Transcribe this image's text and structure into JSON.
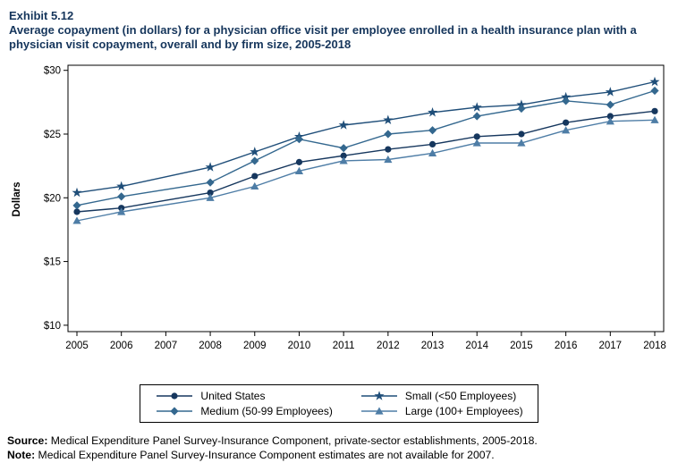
{
  "header": {
    "exhibit": "Exhibit 5.12",
    "title": "Average copayment (in dollars) for a physician office visit per employee enrolled in a health insurance plan with a physician visit copayment, overall and by firm size, 2005-2018"
  },
  "chart_data": {
    "type": "line",
    "x": [
      2005,
      2006,
      2007,
      2008,
      2009,
      2010,
      2011,
      2012,
      2013,
      2014,
      2015,
      2016,
      2017,
      2018
    ],
    "xlabel": "",
    "ylabel": "Dollars",
    "ylim": [
      10,
      30
    ],
    "yticks": [
      10,
      15,
      20,
      25,
      30
    ],
    "ytick_labels": [
      "$10",
      "$15",
      "$20",
      "$25",
      "$30"
    ],
    "grid": false,
    "legend_position": "bottom",
    "missing_year_note": "2007 estimates not available",
    "series": [
      {
        "name": "United States",
        "marker": "circle",
        "color": "#16375e",
        "values": [
          18.9,
          19.2,
          null,
          20.4,
          21.7,
          22.8,
          23.3,
          23.8,
          24.2,
          24.8,
          25.0,
          25.9,
          26.4,
          26.8
        ]
      },
      {
        "name": "Small (<50 Employees)",
        "marker": "star",
        "color": "#1f4e79",
        "values": [
          20.4,
          20.9,
          null,
          22.4,
          23.6,
          24.8,
          25.7,
          26.1,
          26.7,
          27.1,
          27.3,
          27.9,
          28.3,
          29.1
        ]
      },
      {
        "name": "Medium (50-99 Employees)",
        "marker": "diamond",
        "color": "#34688f",
        "values": [
          19.4,
          20.1,
          null,
          21.2,
          22.9,
          24.6,
          23.9,
          25.0,
          25.3,
          26.4,
          27.0,
          27.6,
          27.3,
          28.4
        ]
      },
      {
        "name": "Large (100+ Employees)",
        "marker": "triangle",
        "color": "#4e7da6",
        "values": [
          18.2,
          18.9,
          null,
          20.0,
          20.9,
          22.1,
          22.9,
          23.0,
          23.5,
          24.3,
          24.3,
          25.3,
          26.0,
          26.1
        ]
      }
    ]
  },
  "footer": {
    "source_label": "Source:",
    "source_text": " Medical Expenditure Panel Survey-Insurance Component, private-sector establishments, 2005-2018.",
    "note_label": "Note:",
    "note_text": " Medical Expenditure Panel Survey-Insurance Component estimates are not available for 2007."
  }
}
